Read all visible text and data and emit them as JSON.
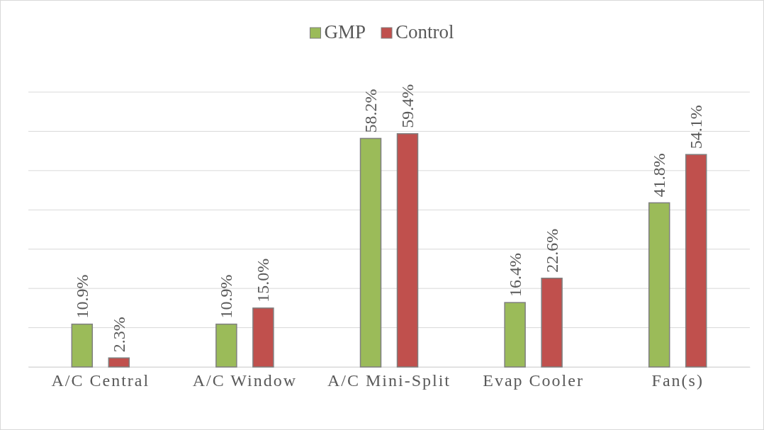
{
  "chart_data": {
    "type": "bar",
    "categories": [
      "A/C Central",
      "A/C Window",
      "A/C Mini-Split",
      "Evap Cooler",
      "Fan(s)"
    ],
    "series": [
      {
        "name": "GMP",
        "color": "#9bbb59",
        "values": [
          10.9,
          10.9,
          58.2,
          16.4,
          41.8
        ],
        "value_labels": [
          "10.9%",
          "10.9%",
          "58.2%",
          "16.4%",
          "41.8%"
        ]
      },
      {
        "name": "Control",
        "color": "#c0504d",
        "values": [
          2.3,
          15.0,
          59.4,
          22.6,
          54.1
        ],
        "value_labels": [
          "2.3%",
          "15.0%",
          "59.4%",
          "22.6%",
          "54.1%"
        ]
      }
    ],
    "ylim": [
      0,
      70
    ],
    "yticks": [
      {
        "value": 0,
        "label": null
      },
      {
        "value": 10,
        "label": null
      },
      {
        "value": 20,
        "label": null
      },
      {
        "value": 30,
        "label": null
      },
      {
        "value": 40,
        "label": null
      },
      {
        "value": 50,
        "label": null
      },
      {
        "value": 60,
        "label": null
      },
      {
        "value": 70,
        "label": null
      }
    ],
    "grid": "y",
    "legend": "top",
    "tick_labels": "x"
  }
}
